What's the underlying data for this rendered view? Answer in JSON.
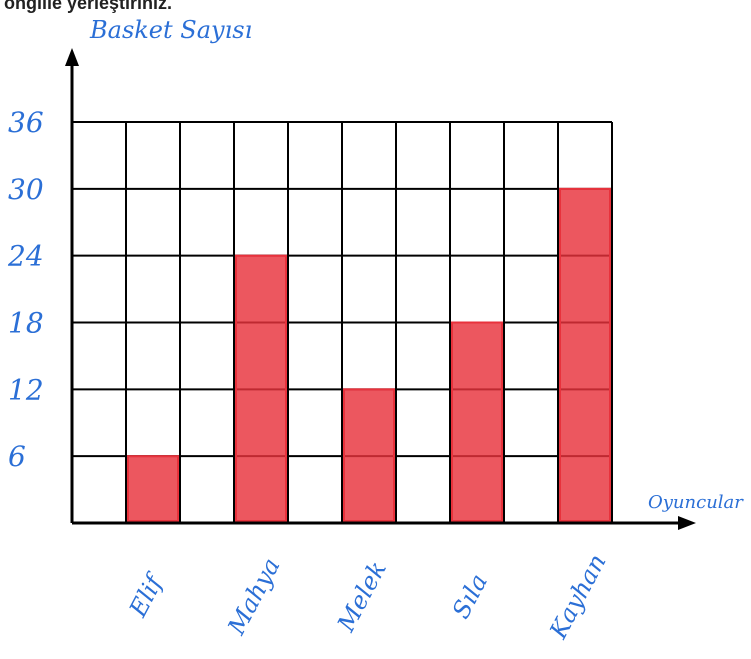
{
  "header_fragment": "ongiiie yerleştiriniz.",
  "chart_data": {
    "type": "bar",
    "title": "",
    "ylabel": "Basket Sayısı",
    "xlabel": "Oyuncular",
    "categories": [
      "Elif",
      "Mahya",
      "Melek",
      "Sıla",
      "Kayhan"
    ],
    "values": [
      6,
      24,
      12,
      18,
      30
    ],
    "yticks": [
      6,
      12,
      18,
      24,
      30,
      36
    ],
    "ylim": [
      0,
      36
    ],
    "grid": true,
    "bar_color": "#e8323c",
    "label_color": "#2b6fd6"
  }
}
